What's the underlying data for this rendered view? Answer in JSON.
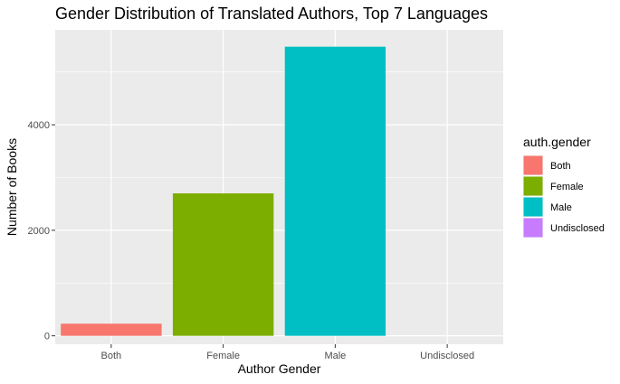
{
  "chart_data": {
    "type": "bar",
    "title": "Gender Distribution of Translated Authors, Top 7 Languages",
    "xlabel": "Author Gender",
    "ylabel": "Number of Books",
    "categories": [
      "Both",
      "Female",
      "Male",
      "Undisclosed"
    ],
    "values": [
      230,
      2700,
      5480,
      0
    ],
    "ylim": [
      -160,
      5800
    ],
    "yticks": [
      0,
      2000,
      4000
    ],
    "ytick_labels": [
      "0",
      "2000",
      "4000"
    ],
    "grid": true,
    "legend": {
      "title": "auth.gender",
      "placement": "right",
      "entries": [
        "Both",
        "Female",
        "Male",
        "Undisclosed"
      ]
    },
    "colors": {
      "Both": "#F8766D",
      "Female": "#7CAE00",
      "Male": "#00BFC4",
      "Undisclosed": "#C77CFF",
      "panel_background": "#EBEBEB",
      "grid": "#FFFFFF"
    }
  }
}
